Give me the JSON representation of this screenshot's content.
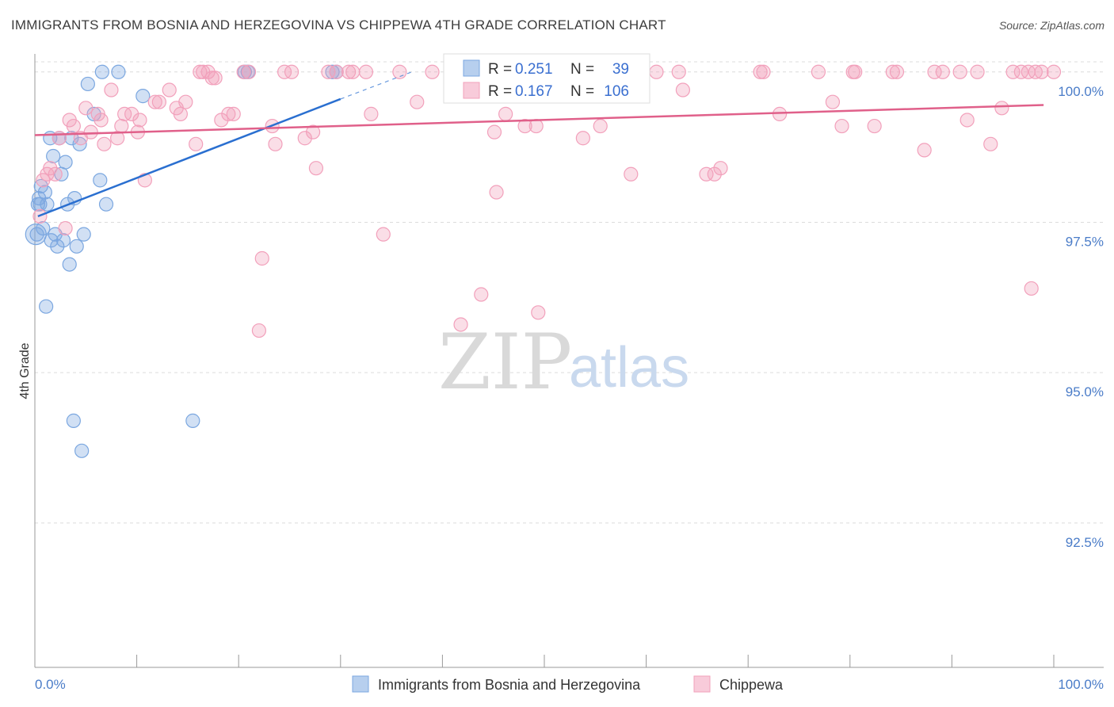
{
  "title": "IMMIGRANTS FROM BOSNIA AND HERZEGOVINA VS CHIPPEWA 4TH GRADE CORRELATION CHART",
  "source": "Source: ZipAtlas.com",
  "watermark": {
    "zip": "ZIP",
    "atlas": "atlas"
  },
  "chart_data": {
    "type": "scatter",
    "title": "IMMIGRANTS FROM BOSNIA AND HERZEGOVINA VS CHIPPEWA 4TH GRADE CORRELATION CHART",
    "xlabel": "",
    "ylabel": "4th Grade",
    "xlim": [
      0,
      100
    ],
    "ylim": [
      90.1,
      100.3
    ],
    "x_tick_labels": [
      "0.0%",
      "100.0%"
    ],
    "y_ticks": [
      92.5,
      95.0,
      97.5,
      100.0
    ],
    "y_tick_labels": [
      "92.5%",
      "95.0%",
      "97.5%",
      "100.0%"
    ],
    "grid": true,
    "legend_placement": "top-center",
    "series": [
      {
        "name": "Immigrants from Bosnia and Herzegovina",
        "color": "#7ba7e0",
        "line_color": "#2a6fd0",
        "r": "0.251",
        "n": "39",
        "trend": {
          "x0": 0.3,
          "y0": 97.6,
          "x1": 30,
          "y1": 99.55,
          "dash_to_x": 37,
          "dash_to_y": 100.0
        },
        "points": [
          [
            0.2,
            97.3
          ],
          [
            0.3,
            97.8
          ],
          [
            0.4,
            97.9
          ],
          [
            0.5,
            97.8
          ],
          [
            0.6,
            98.1
          ],
          [
            0.8,
            97.4
          ],
          [
            1.0,
            98.0
          ],
          [
            1.1,
            96.1
          ],
          [
            1.2,
            97.8
          ],
          [
            1.5,
            98.9
          ],
          [
            1.6,
            97.2
          ],
          [
            1.8,
            98.6
          ],
          [
            2.0,
            97.3
          ],
          [
            2.2,
            97.1
          ],
          [
            2.4,
            98.9
          ],
          [
            2.6,
            98.3
          ],
          [
            2.8,
            97.2
          ],
          [
            3.0,
            98.5
          ],
          [
            3.2,
            97.8
          ],
          [
            3.4,
            96.8
          ],
          [
            3.6,
            98.9
          ],
          [
            3.8,
            94.2
          ],
          [
            3.9,
            97.9
          ],
          [
            4.1,
            97.1
          ],
          [
            4.4,
            98.8
          ],
          [
            4.6,
            93.7
          ],
          [
            4.8,
            97.3
          ],
          [
            5.2,
            99.8
          ],
          [
            5.8,
            99.3
          ],
          [
            6.4,
            98.2
          ],
          [
            6.6,
            100.0
          ],
          [
            7.0,
            97.8
          ],
          [
            8.2,
            100.0
          ],
          [
            10.6,
            99.6
          ],
          [
            15.5,
            94.2
          ],
          [
            20.6,
            100.0
          ],
          [
            20.9,
            100.0
          ],
          [
            29.2,
            100.0
          ],
          [
            29.6,
            100.0
          ]
        ]
      },
      {
        "name": "Chippewa",
        "color": "#f2a0bb",
        "line_color": "#e0608a",
        "r": "0.167",
        "n": "106",
        "trend": {
          "x0": 0,
          "y0": 98.95,
          "x1": 99,
          "y1": 99.45
        },
        "points": [
          [
            0.5,
            97.6
          ],
          [
            0.8,
            98.2
          ],
          [
            1.2,
            98.3
          ],
          [
            1.5,
            98.4
          ],
          [
            2.0,
            98.3
          ],
          [
            2.4,
            98.9
          ],
          [
            3.0,
            97.4
          ],
          [
            3.4,
            99.2
          ],
          [
            3.8,
            99.1
          ],
          [
            4.5,
            98.9
          ],
          [
            5.0,
            99.4
          ],
          [
            5.5,
            99.0
          ],
          [
            6.2,
            99.3
          ],
          [
            6.5,
            99.2
          ],
          [
            6.8,
            98.8
          ],
          [
            7.5,
            99.7
          ],
          [
            8.1,
            98.9
          ],
          [
            8.5,
            99.1
          ],
          [
            8.8,
            99.3
          ],
          [
            9.5,
            99.3
          ],
          [
            10.1,
            99.0
          ],
          [
            10.3,
            99.2
          ],
          [
            10.8,
            98.2
          ],
          [
            11.8,
            99.5
          ],
          [
            12.2,
            99.5
          ],
          [
            13.2,
            99.7
          ],
          [
            13.9,
            99.4
          ],
          [
            14.3,
            99.3
          ],
          [
            14.8,
            99.5
          ],
          [
            15.8,
            98.8
          ],
          [
            16.2,
            100.0
          ],
          [
            16.5,
            100.0
          ],
          [
            17.0,
            100.0
          ],
          [
            17.4,
            99.9
          ],
          [
            17.7,
            99.9
          ],
          [
            18.3,
            99.2
          ],
          [
            19.0,
            99.3
          ],
          [
            19.5,
            99.3
          ],
          [
            20.5,
            100.0
          ],
          [
            21.0,
            100.0
          ],
          [
            22.3,
            96.9
          ],
          [
            22.0,
            95.7
          ],
          [
            23.3,
            99.1
          ],
          [
            23.6,
            98.8
          ],
          [
            24.5,
            100.0
          ],
          [
            25.2,
            100.0
          ],
          [
            26.5,
            98.9
          ],
          [
            27.3,
            99.0
          ],
          [
            27.6,
            98.4
          ],
          [
            28.8,
            100.0
          ],
          [
            29.6,
            100.0
          ],
          [
            30.8,
            100.0
          ],
          [
            31.2,
            100.0
          ],
          [
            32.5,
            100.0
          ],
          [
            33.0,
            99.3
          ],
          [
            34.2,
            97.3
          ],
          [
            35.8,
            100.0
          ],
          [
            37.5,
            99.5
          ],
          [
            39.0,
            100.0
          ],
          [
            41.2,
            100.0
          ],
          [
            41.8,
            95.8
          ],
          [
            43.8,
            96.3
          ],
          [
            45.1,
            99.0
          ],
          [
            45.3,
            98.0
          ],
          [
            46.2,
            99.3
          ],
          [
            47.3,
            100.0
          ],
          [
            48.1,
            99.1
          ],
          [
            49.2,
            99.1
          ],
          [
            49.4,
            96.0
          ],
          [
            51.2,
            100.0
          ],
          [
            53.0,
            100.0
          ],
          [
            53.8,
            98.9
          ],
          [
            55.5,
            99.1
          ],
          [
            58.5,
            98.3
          ],
          [
            61.0,
            100.0
          ],
          [
            63.2,
            100.0
          ],
          [
            63.6,
            99.7
          ],
          [
            65.9,
            98.3
          ],
          [
            66.7,
            98.3
          ],
          [
            67.3,
            98.4
          ],
          [
            71.2,
            100.0
          ],
          [
            71.5,
            100.0
          ],
          [
            73.1,
            99.3
          ],
          [
            76.9,
            100.0
          ],
          [
            78.3,
            99.5
          ],
          [
            79.2,
            99.1
          ],
          [
            80.3,
            100.0
          ],
          [
            80.5,
            100.0
          ],
          [
            82.4,
            99.1
          ],
          [
            84.2,
            100.0
          ],
          [
            84.6,
            100.0
          ],
          [
            87.3,
            98.7
          ],
          [
            88.3,
            100.0
          ],
          [
            89.1,
            100.0
          ],
          [
            90.8,
            100.0
          ],
          [
            91.5,
            99.2
          ],
          [
            92.5,
            100.0
          ],
          [
            93.8,
            98.8
          ],
          [
            94.9,
            99.4
          ],
          [
            96.0,
            100.0
          ],
          [
            96.8,
            100.0
          ],
          [
            97.5,
            100.0
          ],
          [
            97.8,
            96.4
          ],
          [
            98.2,
            100.0
          ],
          [
            98.8,
            100.0
          ],
          [
            100.0,
            100.0
          ]
        ]
      }
    ]
  }
}
